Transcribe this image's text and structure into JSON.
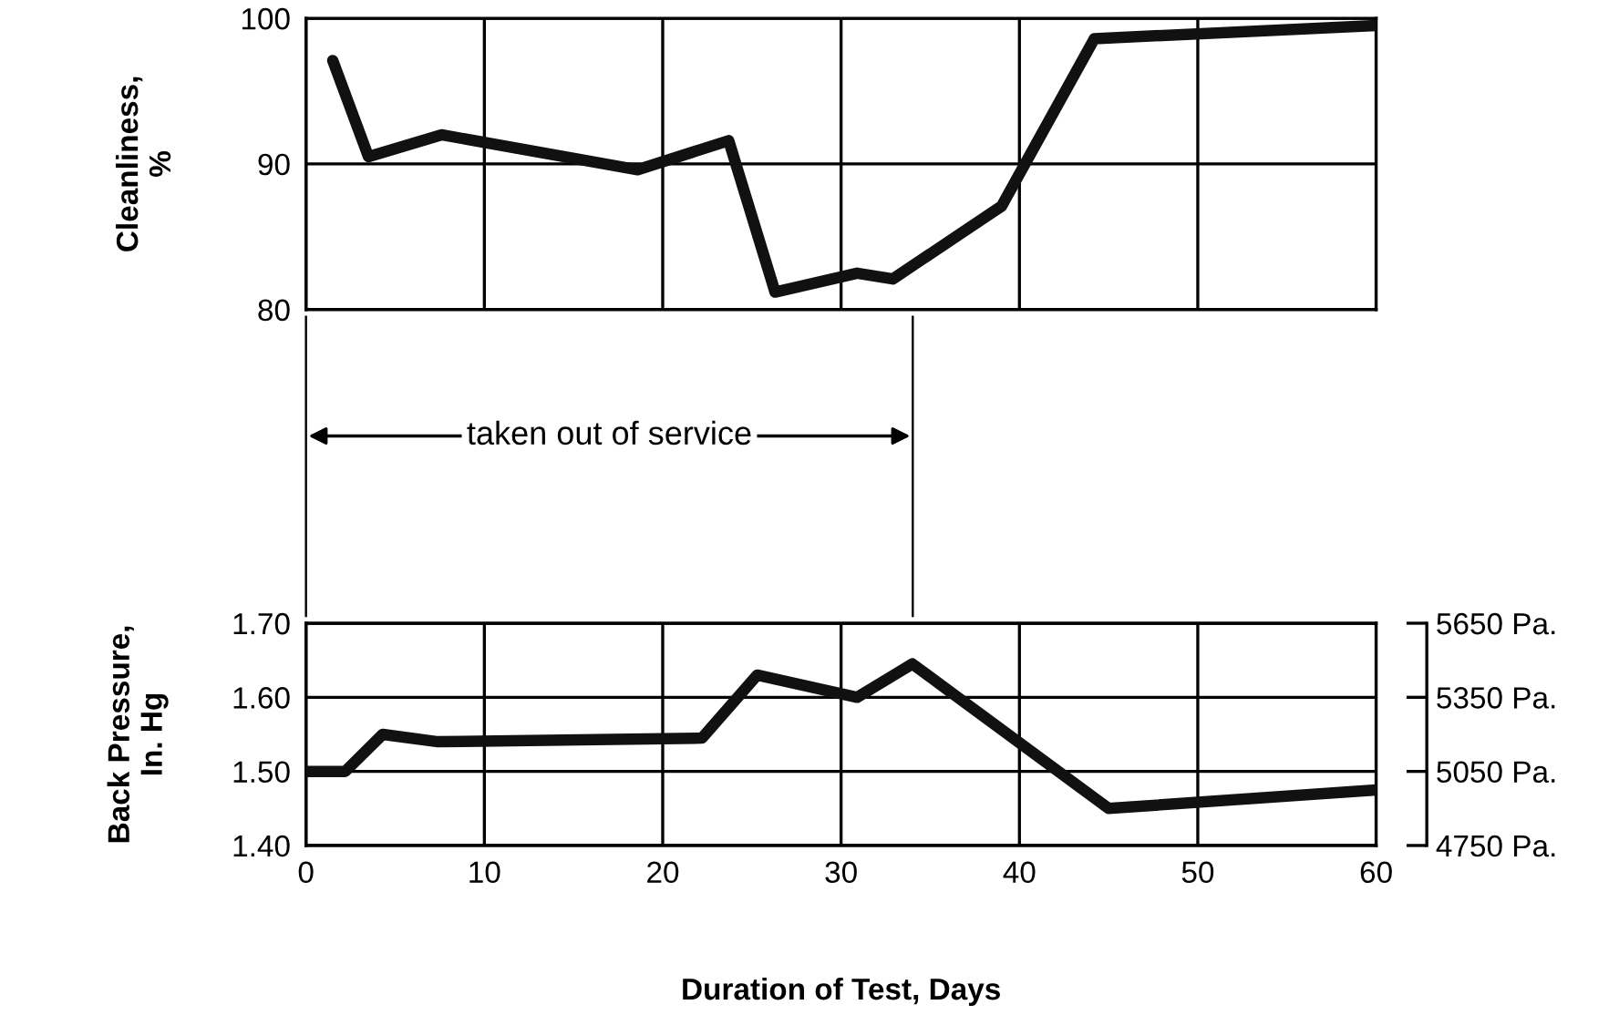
{
  "chart_data": [
    {
      "type": "line",
      "ylabel": "Cleanliness,\n%",
      "series": [
        {
          "color": "#111111",
          "x": [
            1.5,
            3.5,
            7.6,
            18.6,
            23.7,
            26.3,
            30.9,
            32.9,
            39,
            44.2,
            60
          ],
          "values": [
            97.1,
            90.5,
            92.0,
            89.6,
            91.6,
            81.2,
            82.5,
            82.1,
            87.1,
            98.6,
            99.5
          ]
        }
      ],
      "xlim": [
        0,
        60
      ],
      "xticks": [
        0,
        10,
        20,
        30,
        40,
        50,
        60
      ],
      "ylim": [
        80,
        100
      ],
      "yticks": [
        80,
        90,
        100
      ],
      "grid": true,
      "tick_labels": "y",
      "line_style": "solid",
      "marker": "none",
      "annotations": [
        "taken out of service"
      ]
    },
    {
      "type": "line",
      "ylabel": "Back Pressure,\nIn. Hg",
      "xlabel": "Duration of Test, Days",
      "series": [
        {
          "color": "#111111",
          "x": [
            0,
            2.2,
            4.3,
            7.4,
            22.2,
            25.3,
            30.9,
            34,
            45,
            60
          ],
          "values": [
            1.5,
            1.5,
            1.55,
            1.54,
            1.545,
            1.63,
            1.6,
            1.645,
            1.45,
            1.475
          ]
        }
      ],
      "xlim": [
        0,
        60
      ],
      "xticks": [
        0,
        10,
        20,
        30,
        40,
        50,
        60
      ],
      "ylim": [
        1.4,
        1.7
      ],
      "yticks": [
        {
          "value": 1.4,
          "label": "1.40"
        },
        {
          "value": 1.5,
          "label": "1.50"
        },
        {
          "value": 1.6,
          "label": "1.60"
        },
        {
          "value": 1.7,
          "label": "1.70"
        }
      ],
      "y2lim": [
        4750,
        5650
      ],
      "y2ticks": [
        {
          "value": 4750,
          "label": "4750 Pa."
        },
        {
          "value": 5050,
          "label": "5050 Pa."
        },
        {
          "value": 5350,
          "label": "5350 Pa."
        },
        {
          "value": 5650,
          "label": "5650 Pa."
        }
      ],
      "grid": true,
      "line_style": "solid",
      "marker": "none"
    }
  ]
}
